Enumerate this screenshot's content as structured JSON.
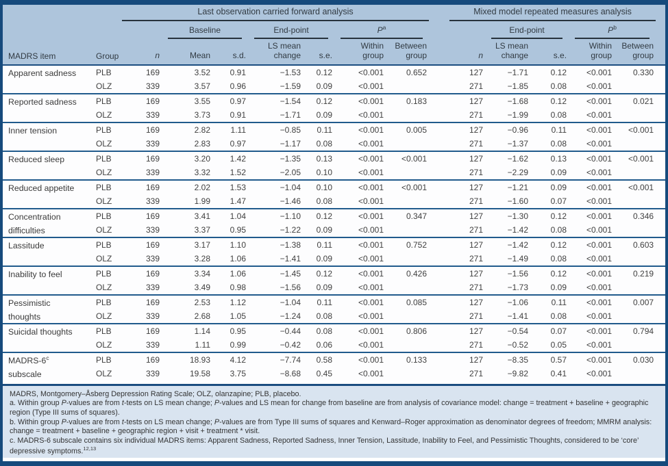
{
  "sections": {
    "locf": "Last observation carried forward analysis",
    "mmrm": "Mixed model repeated measures analysis"
  },
  "header": {
    "baseline": "Baseline",
    "endpoint": "End-point",
    "p": "P",
    "p_sup_a": "a",
    "p_sup_b": "b",
    "madrs_item": "MADRS item",
    "group": "Group",
    "n": "n",
    "mean": "Mean",
    "sd": "s.d.",
    "ls1": "LS mean",
    "ls2": "change",
    "se": "s.e.",
    "within1": "Within",
    "within2": "group",
    "between1": "Between",
    "between2": "group"
  },
  "colors": {
    "header_bg": "#aec5dc",
    "footnote_bg": "#d9e4f0",
    "body_bg": "#fdfdfe",
    "frame_border": "#164a7c",
    "rule_dark": "#27323c",
    "rule_navy": "#205a8c"
  },
  "rows": [
    {
      "item": [
        "Apparent sadness",
        ""
      ],
      "sup": "",
      "sub": [
        {
          "group": "PLB",
          "n": "169",
          "mean": "3.52",
          "sd": "0.91",
          "ls": "−1.53",
          "se": "0.12",
          "within": "<0.001",
          "between": "0.652",
          "n2": "127",
          "ls2": "−1.71",
          "se2": "0.12",
          "within2": "<0.001",
          "between2": "0.330"
        },
        {
          "group": "OLZ",
          "n": "339",
          "mean": "3.57",
          "sd": "0.96",
          "ls": "−1.59",
          "se": "0.09",
          "within": "<0.001",
          "between": "",
          "n2": "271",
          "ls2": "−1.85",
          "se2": "0.08",
          "within2": "<0.001",
          "between2": ""
        }
      ]
    },
    {
      "item": [
        "Reported sadness",
        ""
      ],
      "sup": "",
      "sub": [
        {
          "group": "PLB",
          "n": "169",
          "mean": "3.55",
          "sd": "0.97",
          "ls": "−1.54",
          "se": "0.12",
          "within": "<0.001",
          "between": "0.183",
          "n2": "127",
          "ls2": "−1.68",
          "se2": "0.12",
          "within2": "<0.001",
          "between2": "0.021"
        },
        {
          "group": "OLZ",
          "n": "339",
          "mean": "3.73",
          "sd": "0.91",
          "ls": "−1.71",
          "se": "0.09",
          "within": "<0.001",
          "between": "",
          "n2": "271",
          "ls2": "−1.99",
          "se2": "0.08",
          "within2": "<0.001",
          "between2": ""
        }
      ]
    },
    {
      "item": [
        "Inner tension",
        ""
      ],
      "sup": "",
      "sub": [
        {
          "group": "PLB",
          "n": "169",
          "mean": "2.82",
          "sd": "1.11",
          "ls": "−0.85",
          "se": "0.11",
          "within": "<0.001",
          "between": "0.005",
          "n2": "127",
          "ls2": "−0.96",
          "se2": "0.11",
          "within2": "<0.001",
          "between2": "<0.001"
        },
        {
          "group": "OLZ",
          "n": "339",
          "mean": "2.83",
          "sd": "0.97",
          "ls": "−1.17",
          "se": "0.08",
          "within": "<0.001",
          "between": "",
          "n2": "271",
          "ls2": "−1.37",
          "se2": "0.08",
          "within2": "<0.001",
          "between2": ""
        }
      ]
    },
    {
      "item": [
        "Reduced sleep",
        ""
      ],
      "sup": "",
      "sub": [
        {
          "group": "PLB",
          "n": "169",
          "mean": "3.20",
          "sd": "1.42",
          "ls": "−1.35",
          "se": "0.13",
          "within": "<0.001",
          "between": "<0.001",
          "n2": "127",
          "ls2": "−1.62",
          "se2": "0.13",
          "within2": "<0.001",
          "between2": "<0.001"
        },
        {
          "group": "OLZ",
          "n": "339",
          "mean": "3.32",
          "sd": "1.52",
          "ls": "−2.05",
          "se": "0.10",
          "within": "<0.001",
          "between": "",
          "n2": "271",
          "ls2": "−2.29",
          "se2": "0.09",
          "within2": "<0.001",
          "between2": ""
        }
      ]
    },
    {
      "item": [
        "Reduced appetite",
        ""
      ],
      "sup": "",
      "sub": [
        {
          "group": "PLB",
          "n": "169",
          "mean": "2.02",
          "sd": "1.53",
          "ls": "−1.04",
          "se": "0.10",
          "within": "<0.001",
          "between": "<0.001",
          "n2": "127",
          "ls2": "−1.21",
          "se2": "0.09",
          "within2": "<0.001",
          "between2": "<0.001"
        },
        {
          "group": "OLZ",
          "n": "339",
          "mean": "1.99",
          "sd": "1.47",
          "ls": "−1.46",
          "se": "0.08",
          "within": "<0.001",
          "between": "",
          "n2": "271",
          "ls2": "−1.60",
          "se2": "0.07",
          "within2": "<0.001",
          "between2": ""
        }
      ]
    },
    {
      "item": [
        "Concentration",
        "difficulties"
      ],
      "sup": "",
      "sub": [
        {
          "group": "PLB",
          "n": "169",
          "mean": "3.41",
          "sd": "1.04",
          "ls": "−1.10",
          "se": "0.12",
          "within": "<0.001",
          "between": "0.347",
          "n2": "127",
          "ls2": "−1.30",
          "se2": "0.12",
          "within2": "<0.001",
          "between2": "0.346"
        },
        {
          "group": "OLZ",
          "n": "339",
          "mean": "3.37",
          "sd": "0.95",
          "ls": "−1.22",
          "se": "0.09",
          "within": "<0.001",
          "between": "",
          "n2": "271",
          "ls2": "−1.42",
          "se2": "0.08",
          "within2": "<0.001",
          "between2": ""
        }
      ]
    },
    {
      "item": [
        "Lassitude",
        ""
      ],
      "sup": "",
      "sub": [
        {
          "group": "PLB",
          "n": "169",
          "mean": "3.17",
          "sd": "1.10",
          "ls": "−1.38",
          "se": "0.11",
          "within": "<0.001",
          "between": "0.752",
          "n2": "127",
          "ls2": "−1.42",
          "se2": "0.12",
          "within2": "<0.001",
          "between2": "0.603"
        },
        {
          "group": "OLZ",
          "n": "339",
          "mean": "3.28",
          "sd": "1.06",
          "ls": "−1.41",
          "se": "0.09",
          "within": "<0.001",
          "between": "",
          "n2": "271",
          "ls2": "−1.49",
          "se2": "0.08",
          "within2": "<0.001",
          "between2": ""
        }
      ]
    },
    {
      "item": [
        "Inability to feel",
        ""
      ],
      "sup": "",
      "sub": [
        {
          "group": "PLB",
          "n": "169",
          "mean": "3.34",
          "sd": "1.06",
          "ls": "−1.45",
          "se": "0.12",
          "within": "<0.001",
          "between": "0.426",
          "n2": "127",
          "ls2": "−1.56",
          "se2": "0.12",
          "within2": "<0.001",
          "between2": "0.219"
        },
        {
          "group": "OLZ",
          "n": "339",
          "mean": "3.49",
          "sd": "0.98",
          "ls": "−1.56",
          "se": "0.09",
          "within": "<0.001",
          "between": "",
          "n2": "271",
          "ls2": "−1.73",
          "se2": "0.09",
          "within2": "<0.001",
          "between2": ""
        }
      ]
    },
    {
      "item": [
        "Pessimistic",
        "thoughts"
      ],
      "sup": "",
      "sub": [
        {
          "group": "PLB",
          "n": "169",
          "mean": "2.53",
          "sd": "1.12",
          "ls": "−1.04",
          "se": "0.11",
          "within": "<0.001",
          "between": "0.085",
          "n2": "127",
          "ls2": "−1.06",
          "se2": "0.11",
          "within2": "<0.001",
          "between2": "0.007"
        },
        {
          "group": "OLZ",
          "n": "339",
          "mean": "2.68",
          "sd": "1.05",
          "ls": "−1.24",
          "se": "0.08",
          "within": "<0.001",
          "between": "",
          "n2": "271",
          "ls2": "−1.41",
          "se2": "0.08",
          "within2": "<0.001",
          "between2": ""
        }
      ]
    },
    {
      "item": [
        "Suicidal thoughts",
        ""
      ],
      "sup": "",
      "sub": [
        {
          "group": "PLB",
          "n": "169",
          "mean": "1.14",
          "sd": "0.95",
          "ls": "−0.44",
          "se": "0.08",
          "within": "<0.001",
          "between": "0.806",
          "n2": "127",
          "ls2": "−0.54",
          "se2": "0.07",
          "within2": "<0.001",
          "between2": "0.794"
        },
        {
          "group": "OLZ",
          "n": "339",
          "mean": "1.11",
          "sd": "0.99",
          "ls": "−0.42",
          "se": "0.06",
          "within": "<0.001",
          "between": "",
          "n2": "271",
          "ls2": "−0.52",
          "se2": "0.05",
          "within2": "<0.001",
          "between2": ""
        }
      ]
    },
    {
      "item": [
        "MADRS-6",
        "subscale"
      ],
      "sup": "c",
      "sub": [
        {
          "group": "PLB",
          "n": "169",
          "mean": "18.93",
          "sd": "4.12",
          "ls": "−7.74",
          "se": "0.58",
          "within": "<0.001",
          "between": "0.133",
          "n2": "127",
          "ls2": "−8.35",
          "se2": "0.57",
          "within2": "<0.001",
          "between2": "0.030"
        },
        {
          "group": "OLZ",
          "n": "339",
          "mean": "19.58",
          "sd": "3.75",
          "ls": "−8.68",
          "se": "0.45",
          "within": "<0.001",
          "between": "",
          "n2": "271",
          "ls2": "−9.82",
          "se2": "0.41",
          "within2": "<0.001",
          "between2": ""
        }
      ]
    }
  ],
  "footnotes": [
    [
      {
        "t": "MADRS, Montgomery–Åsberg Depression Rating Scale; OLZ, olanzapine; PLB, placebo."
      }
    ],
    [
      {
        "t": "a. Within group "
      },
      {
        "t": "P",
        "i": true
      },
      {
        "t": "-values are from "
      },
      {
        "t": "t",
        "i": true
      },
      {
        "t": "-tests on LS mean change; "
      },
      {
        "t": "P",
        "i": true
      },
      {
        "t": "-values and LS mean for change from baseline are from analysis of covariance model: change = treatment + baseline + geographic region (Type III sums of squares)."
      }
    ],
    [
      {
        "t": "b. Within group "
      },
      {
        "t": "P",
        "i": true
      },
      {
        "t": "-values are from "
      },
      {
        "t": "t",
        "i": true
      },
      {
        "t": "-tests on LS mean change; "
      },
      {
        "t": "P",
        "i": true
      },
      {
        "t": "-values are from Type III sums of squares and Kenward–Roger approximation as denominator degrees of freedom; MMRM analysis: change = treatment + baseline + geographic region + visit + treatment * visit."
      }
    ],
    [
      {
        "t": "c. MADRS-6 subscale contains six individual MADRS items: Apparent Sadness, Reported Sadness, Inner Tension, Lassitude, Inability to Feel, and Pessimistic Thoughts, considered to be ‘core’ depressive symptoms."
      },
      {
        "t": "12,13",
        "sup": true
      }
    ]
  ]
}
